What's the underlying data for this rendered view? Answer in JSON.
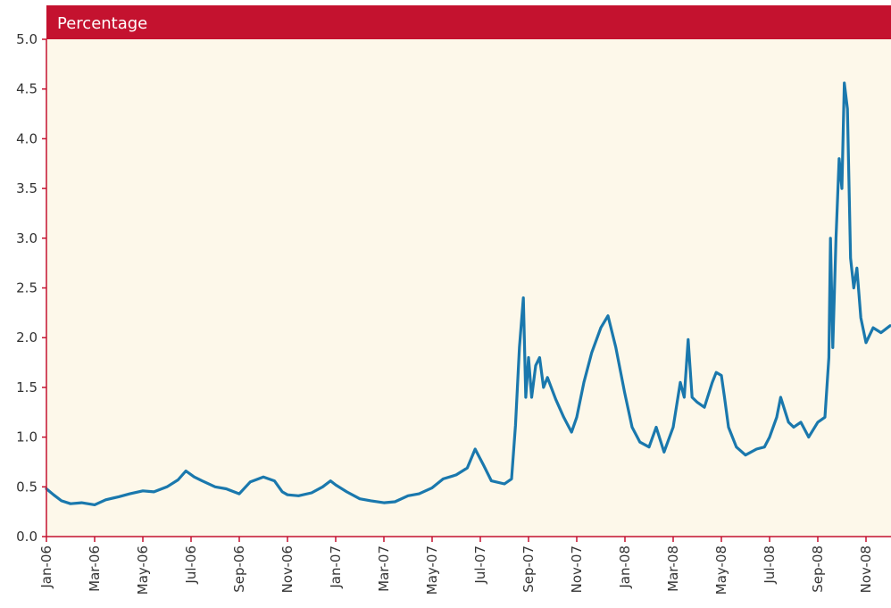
{
  "chart_data": {
    "type": "line",
    "title": "Percentage",
    "xlabel": "",
    "ylabel": "",
    "ylim": [
      0,
      5
    ],
    "y_ticks": [
      "0.0",
      "0.5",
      "1.0",
      "1.5",
      "2.0",
      "2.5",
      "3.0",
      "3.5",
      "4.0",
      "4.5",
      "5.0"
    ],
    "x_ticks": [
      "Jan-06",
      "Mar-06",
      "May-06",
      "Jul-06",
      "Sep-06",
      "Nov-06",
      "Jan-07",
      "Mar-07",
      "May-07",
      "Jul-07",
      "Sep-07",
      "Nov-07",
      "Jan-08",
      "Mar-08",
      "May-08",
      "Jul-08",
      "Sep-08",
      "Nov-08"
    ],
    "x_range": [
      "2006-01-01",
      "2008-12-01"
    ],
    "grid": false,
    "colors": {
      "line": "#1a78ad",
      "plot_background": "#fdf8ea",
      "title_bar": "#c4122f",
      "axis": "#c4122f"
    },
    "series": [
      {
        "points": [
          [
            "2006-01-01",
            0.48
          ],
          [
            "2006-01-10",
            0.42
          ],
          [
            "2006-01-20",
            0.36
          ],
          [
            "2006-02-01",
            0.33
          ],
          [
            "2006-02-15",
            0.34
          ],
          [
            "2006-03-01",
            0.32
          ],
          [
            "2006-03-15",
            0.37
          ],
          [
            "2006-04-01",
            0.4
          ],
          [
            "2006-04-15",
            0.43
          ],
          [
            "2006-05-01",
            0.46
          ],
          [
            "2006-05-15",
            0.45
          ],
          [
            "2006-06-01",
            0.5
          ],
          [
            "2006-06-15",
            0.57
          ],
          [
            "2006-06-25",
            0.66
          ],
          [
            "2006-07-05",
            0.6
          ],
          [
            "2006-07-15",
            0.56
          ],
          [
            "2006-08-01",
            0.5
          ],
          [
            "2006-08-15",
            0.48
          ],
          [
            "2006-09-01",
            0.43
          ],
          [
            "2006-09-15",
            0.55
          ],
          [
            "2006-10-01",
            0.6
          ],
          [
            "2006-10-15",
            0.56
          ],
          [
            "2006-10-25",
            0.45
          ],
          [
            "2006-11-01",
            0.42
          ],
          [
            "2006-11-15",
            0.41
          ],
          [
            "2006-12-01",
            0.44
          ],
          [
            "2006-12-15",
            0.5
          ],
          [
            "2006-12-25",
            0.56
          ],
          [
            "2007-01-01",
            0.52
          ],
          [
            "2007-01-15",
            0.45
          ],
          [
            "2007-02-01",
            0.38
          ],
          [
            "2007-02-15",
            0.36
          ],
          [
            "2007-03-01",
            0.34
          ],
          [
            "2007-03-15",
            0.35
          ],
          [
            "2007-04-01",
            0.41
          ],
          [
            "2007-04-15",
            0.43
          ],
          [
            "2007-05-01",
            0.49
          ],
          [
            "2007-05-15",
            0.58
          ],
          [
            "2007-06-01",
            0.62
          ],
          [
            "2007-06-15",
            0.69
          ],
          [
            "2007-06-25",
            0.88
          ],
          [
            "2007-07-05",
            0.72
          ],
          [
            "2007-07-15",
            0.56
          ],
          [
            "2007-08-01",
            0.53
          ],
          [
            "2007-08-10",
            0.58
          ],
          [
            "2007-08-15",
            1.12
          ],
          [
            "2007-08-20",
            1.9
          ],
          [
            "2007-08-25",
            2.4
          ],
          [
            "2007-08-28",
            1.4
          ],
          [
            "2007-09-01",
            1.8
          ],
          [
            "2007-09-05",
            1.4
          ],
          [
            "2007-09-10",
            1.72
          ],
          [
            "2007-09-15",
            1.8
          ],
          [
            "2007-09-20",
            1.5
          ],
          [
            "2007-09-25",
            1.6
          ],
          [
            "2007-10-05",
            1.38
          ],
          [
            "2007-10-15",
            1.2
          ],
          [
            "2007-10-25",
            1.05
          ],
          [
            "2007-11-01",
            1.2
          ],
          [
            "2007-11-10",
            1.55
          ],
          [
            "2007-11-20",
            1.85
          ],
          [
            "2007-12-01",
            2.1
          ],
          [
            "2007-12-10",
            2.22
          ],
          [
            "2007-12-20",
            1.9
          ],
          [
            "2007-12-31",
            1.45
          ],
          [
            "2008-01-10",
            1.1
          ],
          [
            "2008-01-20",
            0.95
          ],
          [
            "2008-02-01",
            0.9
          ],
          [
            "2008-02-10",
            1.1
          ],
          [
            "2008-02-20",
            0.85
          ],
          [
            "2008-03-01",
            1.1
          ],
          [
            "2008-03-10",
            1.55
          ],
          [
            "2008-03-15",
            1.4
          ],
          [
            "2008-03-20",
            1.98
          ],
          [
            "2008-03-25",
            1.4
          ],
          [
            "2008-04-01",
            1.35
          ],
          [
            "2008-04-10",
            1.3
          ],
          [
            "2008-04-20",
            1.55
          ],
          [
            "2008-04-25",
            1.65
          ],
          [
            "2008-05-01",
            1.62
          ],
          [
            "2008-05-05",
            1.4
          ],
          [
            "2008-05-10",
            1.1
          ],
          [
            "2008-05-20",
            0.9
          ],
          [
            "2008-06-01",
            0.82
          ],
          [
            "2008-06-15",
            0.88
          ],
          [
            "2008-06-25",
            0.9
          ],
          [
            "2008-07-01",
            1.0
          ],
          [
            "2008-07-10",
            1.2
          ],
          [
            "2008-07-15",
            1.4
          ],
          [
            "2008-07-25",
            1.15
          ],
          [
            "2008-08-01",
            1.1
          ],
          [
            "2008-08-10",
            1.15
          ],
          [
            "2008-08-20",
            1.0
          ],
          [
            "2008-09-01",
            1.15
          ],
          [
            "2008-09-10",
            1.2
          ],
          [
            "2008-09-15",
            1.8
          ],
          [
            "2008-09-17",
            3.0
          ],
          [
            "2008-09-20",
            1.9
          ],
          [
            "2008-09-24",
            3.0
          ],
          [
            "2008-09-28",
            3.8
          ],
          [
            "2008-10-01",
            3.5
          ],
          [
            "2008-10-04",
            4.56
          ],
          [
            "2008-10-08",
            4.3
          ],
          [
            "2008-10-12",
            2.8
          ],
          [
            "2008-10-16",
            2.5
          ],
          [
            "2008-10-20",
            2.7
          ],
          [
            "2008-10-25",
            2.2
          ],
          [
            "2008-11-01",
            1.95
          ],
          [
            "2008-11-10",
            2.1
          ],
          [
            "2008-11-20",
            2.05
          ],
          [
            "2008-12-01",
            2.12
          ]
        ]
      }
    ]
  }
}
